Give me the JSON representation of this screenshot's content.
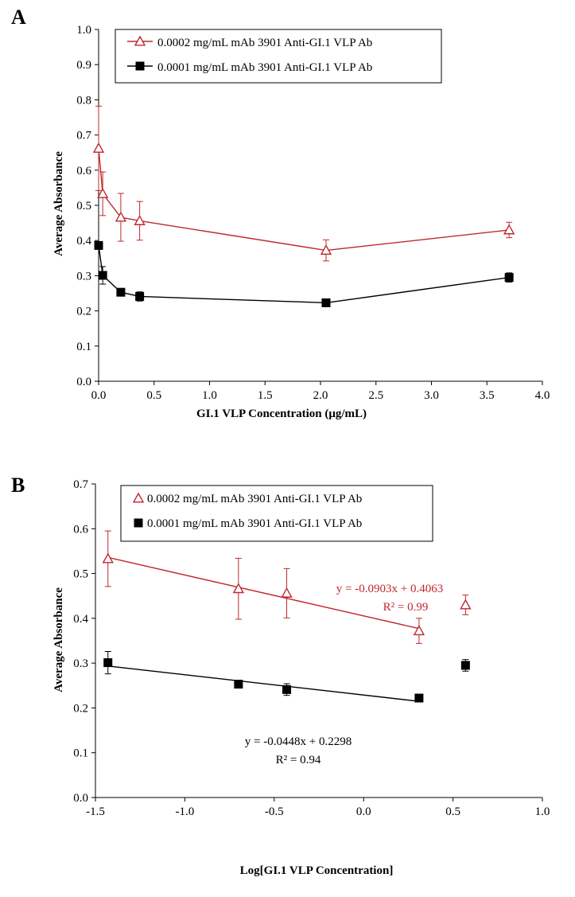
{
  "colors": {
    "series1": "#c0282d",
    "series2": "#000000",
    "axis": "#000000"
  },
  "chart_data": [
    {
      "panel_label": "A",
      "type": "line",
      "xlabel": "GI.1  VLP Concentration  (μg/mL)",
      "ylabel": "Average  Absorbance",
      "xlim": [
        0.0,
        4.0
      ],
      "ylim": [
        0.0,
        1.0
      ],
      "xticks": [
        "0.0",
        "0.5",
        "1.0",
        "1.5",
        "2.0",
        "2.5",
        "3.0",
        "3.5",
        "4.0"
      ],
      "yticks": [
        "0.0",
        "0.1",
        "0.2",
        "0.3",
        "0.4",
        "0.5",
        "0.6",
        "0.7",
        "0.8",
        "0.9",
        "1.0"
      ],
      "legend_position": "top-left",
      "series": [
        {
          "name": "0.0002 mg/mL mAb 3901 Anti-GI.1 VLP Ab",
          "color": "#c0282d",
          "marker": "open-triangle",
          "x": [
            0.0,
            0.037,
            0.2,
            0.37,
            2.05,
            3.7
          ],
          "y": [
            0.662,
            0.533,
            0.466,
            0.456,
            0.372,
            0.43
          ],
          "err": [
            0.12,
            0.062,
            0.068,
            0.055,
            0.03,
            0.022
          ]
        },
        {
          "name": "0.0001 mg/mL mAb 3901 Anti-GI.1 VLP Ab",
          "color": "#000000",
          "marker": "filled-square",
          "x": [
            0.0,
            0.037,
            0.2,
            0.37,
            2.05,
            3.7
          ],
          "y": [
            0.386,
            0.301,
            0.253,
            0.241,
            0.223,
            0.295
          ],
          "err": [
            0.0,
            0.025,
            0.01,
            0.013,
            0.008,
            0.013
          ]
        }
      ]
    },
    {
      "panel_label": "B",
      "type": "scatter",
      "xlabel": "Log[GI.1  VLP Concentration]",
      "ylabel": "Average  Absorbance",
      "xlim": [
        -1.5,
        1.0
      ],
      "ylim": [
        0.0,
        0.7
      ],
      "xticks": [
        "-1.5",
        "-1.0",
        "-0.5",
        "0.0",
        "0.5",
        "1.0"
      ],
      "yticks": [
        "0.0",
        "0.1",
        "0.2",
        "0.3",
        "0.4",
        "0.5",
        "0.6",
        "0.7"
      ],
      "legend_position": "top-left",
      "series": [
        {
          "name": "0.0002 mg/mL mAb 3901 Anti-GI.1 VLP Ab",
          "color": "#c0282d",
          "marker": "open-triangle",
          "x": [
            -1.43,
            -0.7,
            -0.43,
            0.31,
            0.57
          ],
          "y": [
            0.533,
            0.466,
            0.456,
            0.372,
            0.43
          ],
          "err": [
            0.062,
            0.068,
            0.055,
            0.028,
            0.022
          ],
          "trendline": {
            "x": [
              -1.43,
              0.31
            ],
            "equation": "y = -0.0903x  + 0.4063",
            "r2": "R² = 0.99"
          }
        },
        {
          "name": "0.0001 mg/mL mAb 3901 Anti-GI.1 VLP Ab",
          "color": "#000000",
          "marker": "filled-square",
          "x": [
            -1.43,
            -0.7,
            -0.43,
            0.31,
            0.57
          ],
          "y": [
            0.301,
            0.253,
            0.241,
            0.222,
            0.295
          ],
          "err": [
            0.025,
            0.0,
            0.013,
            0.008,
            0.013
          ],
          "trendline": {
            "x": [
              -1.43,
              0.31
            ],
            "equation": "y = -0.0448x  + 0.2298",
            "r2": "R² = 0.94"
          }
        }
      ]
    }
  ]
}
